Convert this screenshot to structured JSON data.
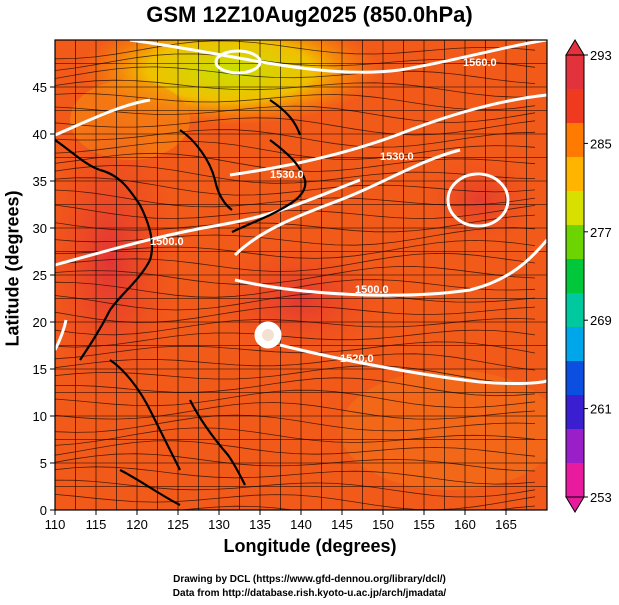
{
  "title": "GSM 12Z10Aug2025 (850.0hPa)",
  "axes": {
    "xlabel": "Longitude (degrees)",
    "ylabel": "Latitude  (degrees)",
    "xticks": [
      110,
      115,
      120,
      125,
      130,
      135,
      140,
      145,
      150,
      155,
      160,
      165
    ],
    "yticks": [
      0,
      5,
      10,
      15,
      20,
      25,
      30,
      35,
      40,
      45
    ],
    "xlim": [
      110,
      170
    ],
    "ylim": [
      0,
      50
    ]
  },
  "colorbar": {
    "labels": [
      "293",
      "285",
      "277",
      "269",
      "261",
      "253"
    ],
    "min": 253,
    "max": 293,
    "colors": [
      "#e81a9e",
      "#9b1fc9",
      "#3a1fd0",
      "#0a4fe0",
      "#00a6ea",
      "#00c9a0",
      "#00c83a",
      "#6cd400",
      "#d8e000",
      "#ffb400",
      "#ff7a00",
      "#f03a20",
      "#e2323c"
    ]
  },
  "contours": [
    {
      "label": "1560.0"
    },
    {
      "label": "1530.0"
    },
    {
      "label": "1530.0"
    },
    {
      "label": "1500.0"
    },
    {
      "label": "1500.0"
    },
    {
      "label": "1520.0"
    },
    {
      "label": "1520.0"
    }
  ],
  "credits": {
    "line1": "Drawing by DCL (https://www.gfd-dennou.org/library/dcl/)",
    "line2": "Data from http://database.rish.kyoto-u.ac.jp/arch/jmadata/"
  }
}
